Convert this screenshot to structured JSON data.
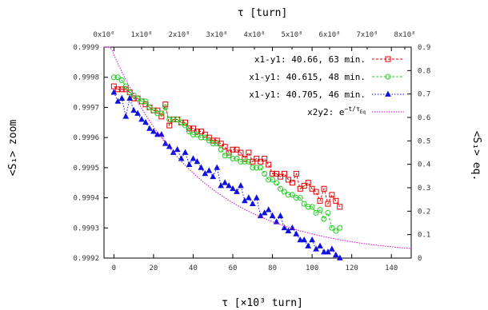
{
  "chart_data": {
    "type": "line",
    "top_axis_label": "τ [turn]",
    "top_axis_tick_labels": [
      "0x10⁰",
      "1x10⁸",
      "2x10⁸",
      "3x10⁸",
      "4x10⁸",
      "5x10⁸",
      "6x10⁸",
      "7x10⁸",
      "8x10⁸"
    ],
    "xlabel": "τ [×10³ turn]",
    "ylabel_left": "<S₁> zoom",
    "ylabel_right": "<S₁> eq.",
    "xlim": [
      -5,
      150
    ],
    "ylim_left": [
      0.9992,
      0.9999
    ],
    "ylim_right": [
      0,
      0.9
    ],
    "x_ticks": [
      "0",
      "20",
      "40",
      "60",
      "80",
      "100",
      "120",
      "140"
    ],
    "y_ticks_left": [
      "0.9992",
      "0.9993",
      "0.9994",
      "0.9995",
      "0.9996",
      "0.9997",
      "0.9998",
      "0.9999"
    ],
    "y_ticks_right": [
      "0",
      "0.1",
      "0.2",
      "0.3",
      "0.4",
      "0.5",
      "0.6",
      "0.7",
      "0.8",
      "0.9"
    ],
    "series": [
      {
        "name": "x1-y1: 40.66, 63 min.",
        "color": "#e00000",
        "marker": "square",
        "axis": "left",
        "x": [
          0,
          2,
          4,
          6,
          8,
          10,
          12,
          14,
          16,
          18,
          20,
          22,
          24,
          26,
          28,
          30,
          32,
          34,
          36,
          38,
          40,
          42,
          44,
          46,
          48,
          50,
          52,
          54,
          56,
          58,
          60,
          62,
          64,
          66,
          68,
          70,
          72,
          74,
          76,
          78,
          80,
          82,
          84,
          86,
          88,
          90,
          92,
          94,
          96,
          98,
          100,
          102,
          104,
          106,
          108,
          110,
          112,
          114
        ],
        "values": [
          0.99977,
          0.99976,
          0.99976,
          0.99976,
          0.99975,
          0.99973,
          0.99973,
          0.99972,
          0.99971,
          0.9997,
          0.99969,
          0.99969,
          0.99967,
          0.99971,
          0.99964,
          0.99966,
          0.99966,
          0.99965,
          0.99965,
          0.99963,
          0.99963,
          0.99962,
          0.99962,
          0.99961,
          0.9996,
          0.99959,
          0.99959,
          0.99958,
          0.99957,
          0.99955,
          0.99956,
          0.99956,
          0.99955,
          0.99953,
          0.99955,
          0.99952,
          0.99953,
          0.99952,
          0.99953,
          0.99951,
          0.99948,
          0.99948,
          0.99947,
          0.99948,
          0.99946,
          0.99945,
          0.99948,
          0.99943,
          0.99944,
          0.99945,
          0.99943,
          0.99942,
          0.99939,
          0.99943,
          0.99938,
          0.99941,
          0.99939,
          0.99937
        ]
      },
      {
        "name": "x1-y1: 40.615, 48 min.",
        "color": "#22cc22",
        "marker": "circle",
        "axis": "left",
        "x": [
          0,
          2,
          4,
          6,
          8,
          10,
          12,
          14,
          16,
          18,
          20,
          22,
          24,
          26,
          28,
          30,
          32,
          34,
          36,
          38,
          40,
          42,
          44,
          46,
          48,
          50,
          52,
          54,
          56,
          58,
          60,
          62,
          64,
          66,
          68,
          70,
          72,
          74,
          76,
          78,
          80,
          82,
          84,
          86,
          88,
          90,
          92,
          94,
          96,
          98,
          100,
          102,
          104,
          106,
          108,
          110,
          112,
          114
        ],
        "values": [
          0.9998,
          0.9998,
          0.99979,
          0.99977,
          0.99975,
          0.99974,
          0.99973,
          0.99972,
          0.99972,
          0.9997,
          0.99969,
          0.99968,
          0.99968,
          0.9997,
          0.99966,
          0.99966,
          0.99966,
          0.99965,
          0.99964,
          0.99962,
          0.99961,
          0.99961,
          0.9996,
          0.9996,
          0.99959,
          0.99958,
          0.99958,
          0.99956,
          0.99954,
          0.99954,
          0.99953,
          0.99953,
          0.99952,
          0.99952,
          0.99952,
          0.9995,
          0.9995,
          0.9995,
          0.99948,
          0.99946,
          0.99946,
          0.99945,
          0.99943,
          0.99942,
          0.99941,
          0.99941,
          0.9994,
          0.9994,
          0.99938,
          0.99937,
          0.99937,
          0.99935,
          0.99936,
          0.99933,
          0.99935,
          0.9993,
          0.99929,
          0.9993
        ]
      },
      {
        "name": "x1-y1: 40.705, 46 min.",
        "color": "#1111dd",
        "marker": "triangle",
        "axis": "left",
        "x": [
          0,
          2,
          4,
          6,
          8,
          10,
          12,
          14,
          16,
          18,
          20,
          22,
          24,
          26,
          28,
          30,
          32,
          34,
          36,
          38,
          40,
          42,
          44,
          46,
          48,
          50,
          52,
          54,
          56,
          58,
          60,
          62,
          64,
          66,
          68,
          70,
          72,
          74,
          76,
          78,
          80,
          82,
          84,
          86,
          88,
          90,
          92,
          94,
          96,
          98,
          100,
          102,
          104,
          106,
          108,
          110,
          112,
          114
        ],
        "values": [
          0.99975,
          0.99972,
          0.99973,
          0.99967,
          0.99973,
          0.99969,
          0.99968,
          0.99966,
          0.99965,
          0.99963,
          0.99962,
          0.99961,
          0.99961,
          0.99958,
          0.99957,
          0.99955,
          0.99956,
          0.99953,
          0.99955,
          0.99951,
          0.99953,
          0.99952,
          0.9995,
          0.99948,
          0.99949,
          0.99947,
          0.9995,
          0.99944,
          0.99945,
          0.99944,
          0.99943,
          0.99942,
          0.99944,
          0.99939,
          0.9994,
          0.99938,
          0.9994,
          0.99934,
          0.99935,
          0.99936,
          0.99934,
          0.99932,
          0.99934,
          0.9993,
          0.99929,
          0.9993,
          0.99928,
          0.99926,
          0.99926,
          0.99924,
          0.99926,
          0.99923,
          0.99924,
          0.99922,
          0.99922,
          0.99923,
          0.99921,
          0.9992
        ]
      },
      {
        "name": "x2y2: e",
        "legend_superscript": "−t/τ",
        "legend_subscript": "Eq",
        "color": "#dd00dd",
        "marker": "none",
        "dash": "dotted",
        "axis": "right",
        "function": "0.858*exp(-x/45)+0.01"
      }
    ]
  }
}
